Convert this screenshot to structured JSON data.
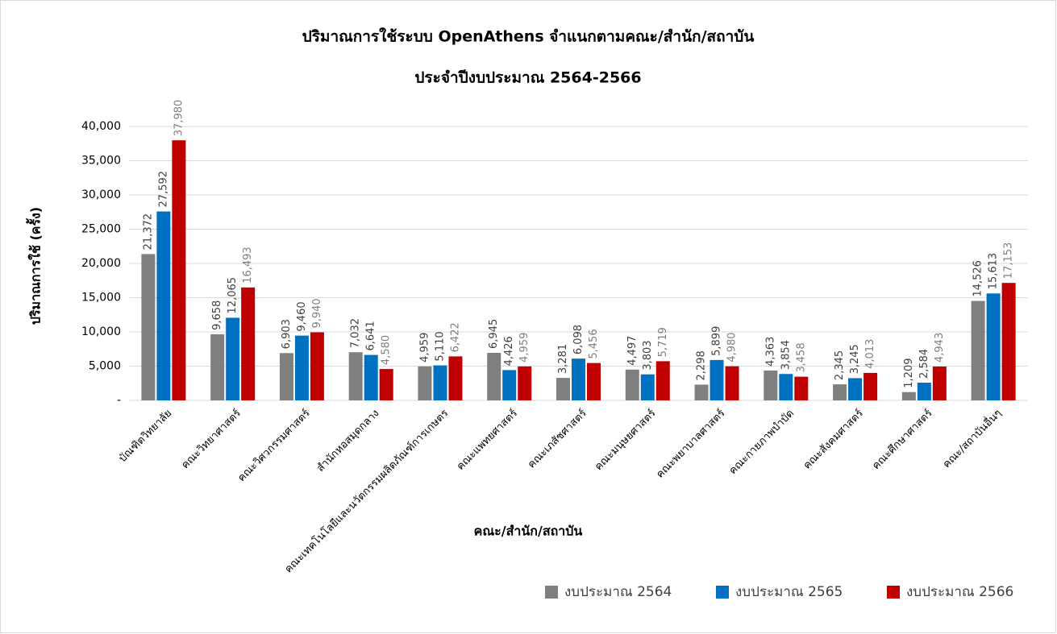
{
  "chart_data": {
    "type": "bar",
    "title": "ปริมาณการใช้ระบบ OpenAthens จำแนกตามคณะ/สำนัก/สถาบัน",
    "subtitle": "ประจำปีงบประมาณ 2564-2566",
    "x_label": "คณะ/สำนัก/สถาบัน",
    "y_label": "ปริมาณการใช้ (ครั้ง)",
    "categories": [
      "บัณฑิตวิทยาลัย",
      "คณะวิทยาศาสตร์",
      "คณะวิศวกรรมศาสตร์",
      "สำนักหอสมุดกลาง",
      "คณะเทคโนโลยีและนวัตกรรมผลิตภัณฑ์การเกษตร",
      "คณะแพทยศาสตร์",
      "คณะเภสัชศาสตร์",
      "คณะมนุษยศาสตร์",
      "คณะพยาบาลศาสตร์",
      "คณะกายภาพบำบัด",
      "คณะสังคมศาสตร์",
      "คณะศึกษาศาสตร์",
      "คณะ/สถาบันอื่นๆ"
    ],
    "series": [
      {
        "name": "งบประมาณ 2564",
        "color": "#7f7f7f",
        "values": [
          21372,
          9658,
          6903,
          7032,
          4959,
          6945,
          3281,
          4497,
          2298,
          4363,
          2345,
          1209,
          14526
        ],
        "value_labels": [
          "21,372",
          "9,658",
          "6,903",
          "7,032",
          "4,959",
          "6,945",
          "3,281",
          "4,497",
          "2,298",
          "4,363",
          "2,345",
          "1,209",
          "14,526"
        ]
      },
      {
        "name": "งบประมาณ 2565",
        "color": "#0070c0",
        "values": [
          27592,
          12065,
          9460,
          6641,
          5110,
          4426,
          6098,
          3803,
          5899,
          3854,
          3245,
          2584,
          15613
        ],
        "value_labels": [
          "27,592",
          "12,065",
          "9,460",
          "6,641",
          "5,110",
          "4,426",
          "6,098",
          "3,803",
          "5,899",
          "3,854",
          "3,245",
          "2,584",
          "15,613"
        ]
      },
      {
        "name": "งบประมาณ 2566",
        "color": "#c00000",
        "values": [
          37980,
          16493,
          9940,
          4580,
          6422,
          4959,
          5456,
          5719,
          4980,
          3458,
          4013,
          4943,
          17153
        ],
        "value_labels": [
          "37,980",
          "16,493",
          "9,940",
          "4,580",
          "6,422",
          "4,959",
          "5,456",
          "5,719",
          "4,980",
          "3,458",
          "4,013",
          "4,943",
          "17,153"
        ]
      }
    ],
    "ylim": [
      0,
      40000
    ],
    "yticks": [
      {
        "value": 0,
        "label": "-"
      },
      {
        "value": 5000,
        "label": "5,000"
      },
      {
        "value": 10000,
        "label": "10,000"
      },
      {
        "value": 15000,
        "label": "15,000"
      },
      {
        "value": 20000,
        "label": "20,000"
      },
      {
        "value": 25000,
        "label": "25,000"
      },
      {
        "value": 30000,
        "label": "30,000"
      },
      {
        "value": 35000,
        "label": "35,000"
      },
      {
        "value": 40000,
        "label": "40,000"
      }
    ],
    "grid": true,
    "legend": "bottom-right"
  }
}
